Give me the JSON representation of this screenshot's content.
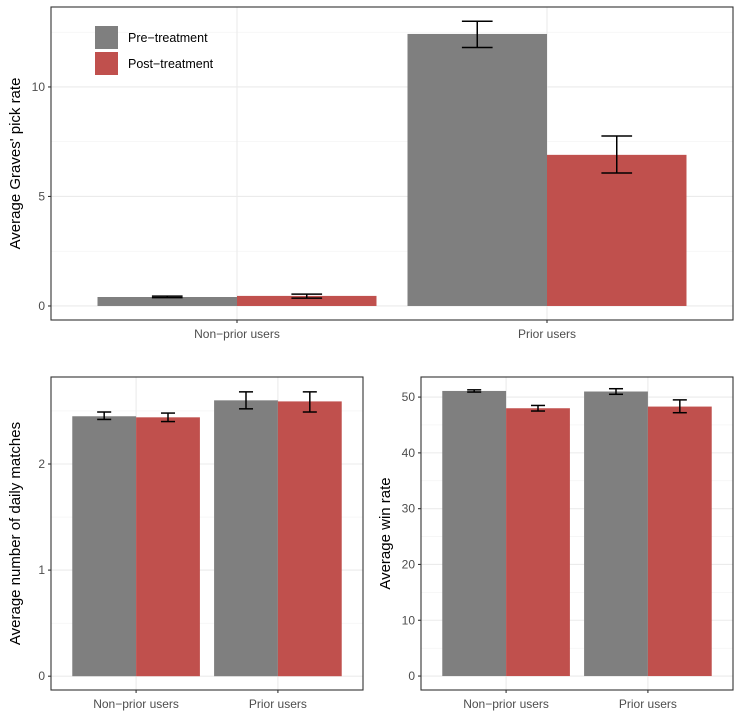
{
  "legend": {
    "position": "top-left-inside",
    "items": [
      {
        "label": "Pre-treatment",
        "color": "#7f7f7f"
      },
      {
        "label": "Post-treatment",
        "color": "#c0504d"
      }
    ]
  },
  "chart_data": [
    {
      "type": "bar",
      "title": "",
      "xlabel": "",
      "ylabel": "Average Graves' pick rate",
      "categories": [
        "Non−prior users",
        "Prior users"
      ],
      "ylim": [
        -0.64,
        13.65
      ],
      "yticks": [
        0,
        5,
        10
      ],
      "ytick_labels": [
        "0",
        "5",
        "10"
      ],
      "minor_yticks": [
        2.5,
        7.5,
        12.5
      ],
      "grid": true,
      "series": [
        {
          "name": "Pre-treatment",
          "color": "#7f7f7f",
          "values": [
            0.41,
            12.42
          ],
          "err_low": [
            0.38,
            11.8
          ],
          "err_high": [
            0.45,
            13.0
          ]
        },
        {
          "name": "Post-treatment",
          "color": "#c0504d",
          "values": [
            0.46,
            6.9
          ],
          "err_low": [
            0.36,
            6.07
          ],
          "err_high": [
            0.54,
            7.76
          ]
        }
      ]
    },
    {
      "type": "bar",
      "title": "",
      "xlabel": "",
      "ylabel": "Average number of daily matches",
      "categories": [
        "Non−prior users",
        "Prior users"
      ],
      "ylim": [
        -0.13,
        2.82
      ],
      "yticks": [
        0,
        1,
        2
      ],
      "ytick_labels": [
        "0",
        "1",
        "2"
      ],
      "minor_yticks": [
        0.5,
        1.5,
        2.5
      ],
      "grid": true,
      "series": [
        {
          "name": "Pre-treatment",
          "color": "#7f7f7f",
          "values": [
            2.45,
            2.6
          ],
          "err_low": [
            2.42,
            2.52
          ],
          "err_high": [
            2.49,
            2.68
          ]
        },
        {
          "name": "Post-treatment",
          "color": "#c0504d",
          "values": [
            2.44,
            2.59
          ],
          "err_low": [
            2.4,
            2.49
          ],
          "err_high": [
            2.48,
            2.68
          ]
        }
      ]
    },
    {
      "type": "bar",
      "title": "",
      "xlabel": "",
      "ylabel": "Average win rate",
      "categories": [
        "Non−prior users",
        "Prior users"
      ],
      "ylim": [
        -2.5,
        53.6
      ],
      "yticks": [
        0,
        10,
        20,
        30,
        40,
        50
      ],
      "ytick_labels": [
        "0",
        "10",
        "20",
        "30",
        "40",
        "50"
      ],
      "minor_yticks": [
        5,
        15,
        25,
        35,
        45
      ],
      "grid": true,
      "series": [
        {
          "name": "Pre-treatment",
          "color": "#7f7f7f",
          "values": [
            51.1,
            51.0
          ],
          "err_low": [
            50.9,
            50.5
          ],
          "err_high": [
            51.3,
            51.5
          ]
        },
        {
          "name": "Post-treatment",
          "color": "#c0504d",
          "values": [
            48.0,
            48.3
          ],
          "err_low": [
            47.5,
            47.2
          ],
          "err_high": [
            48.5,
            49.5
          ]
        }
      ]
    }
  ]
}
